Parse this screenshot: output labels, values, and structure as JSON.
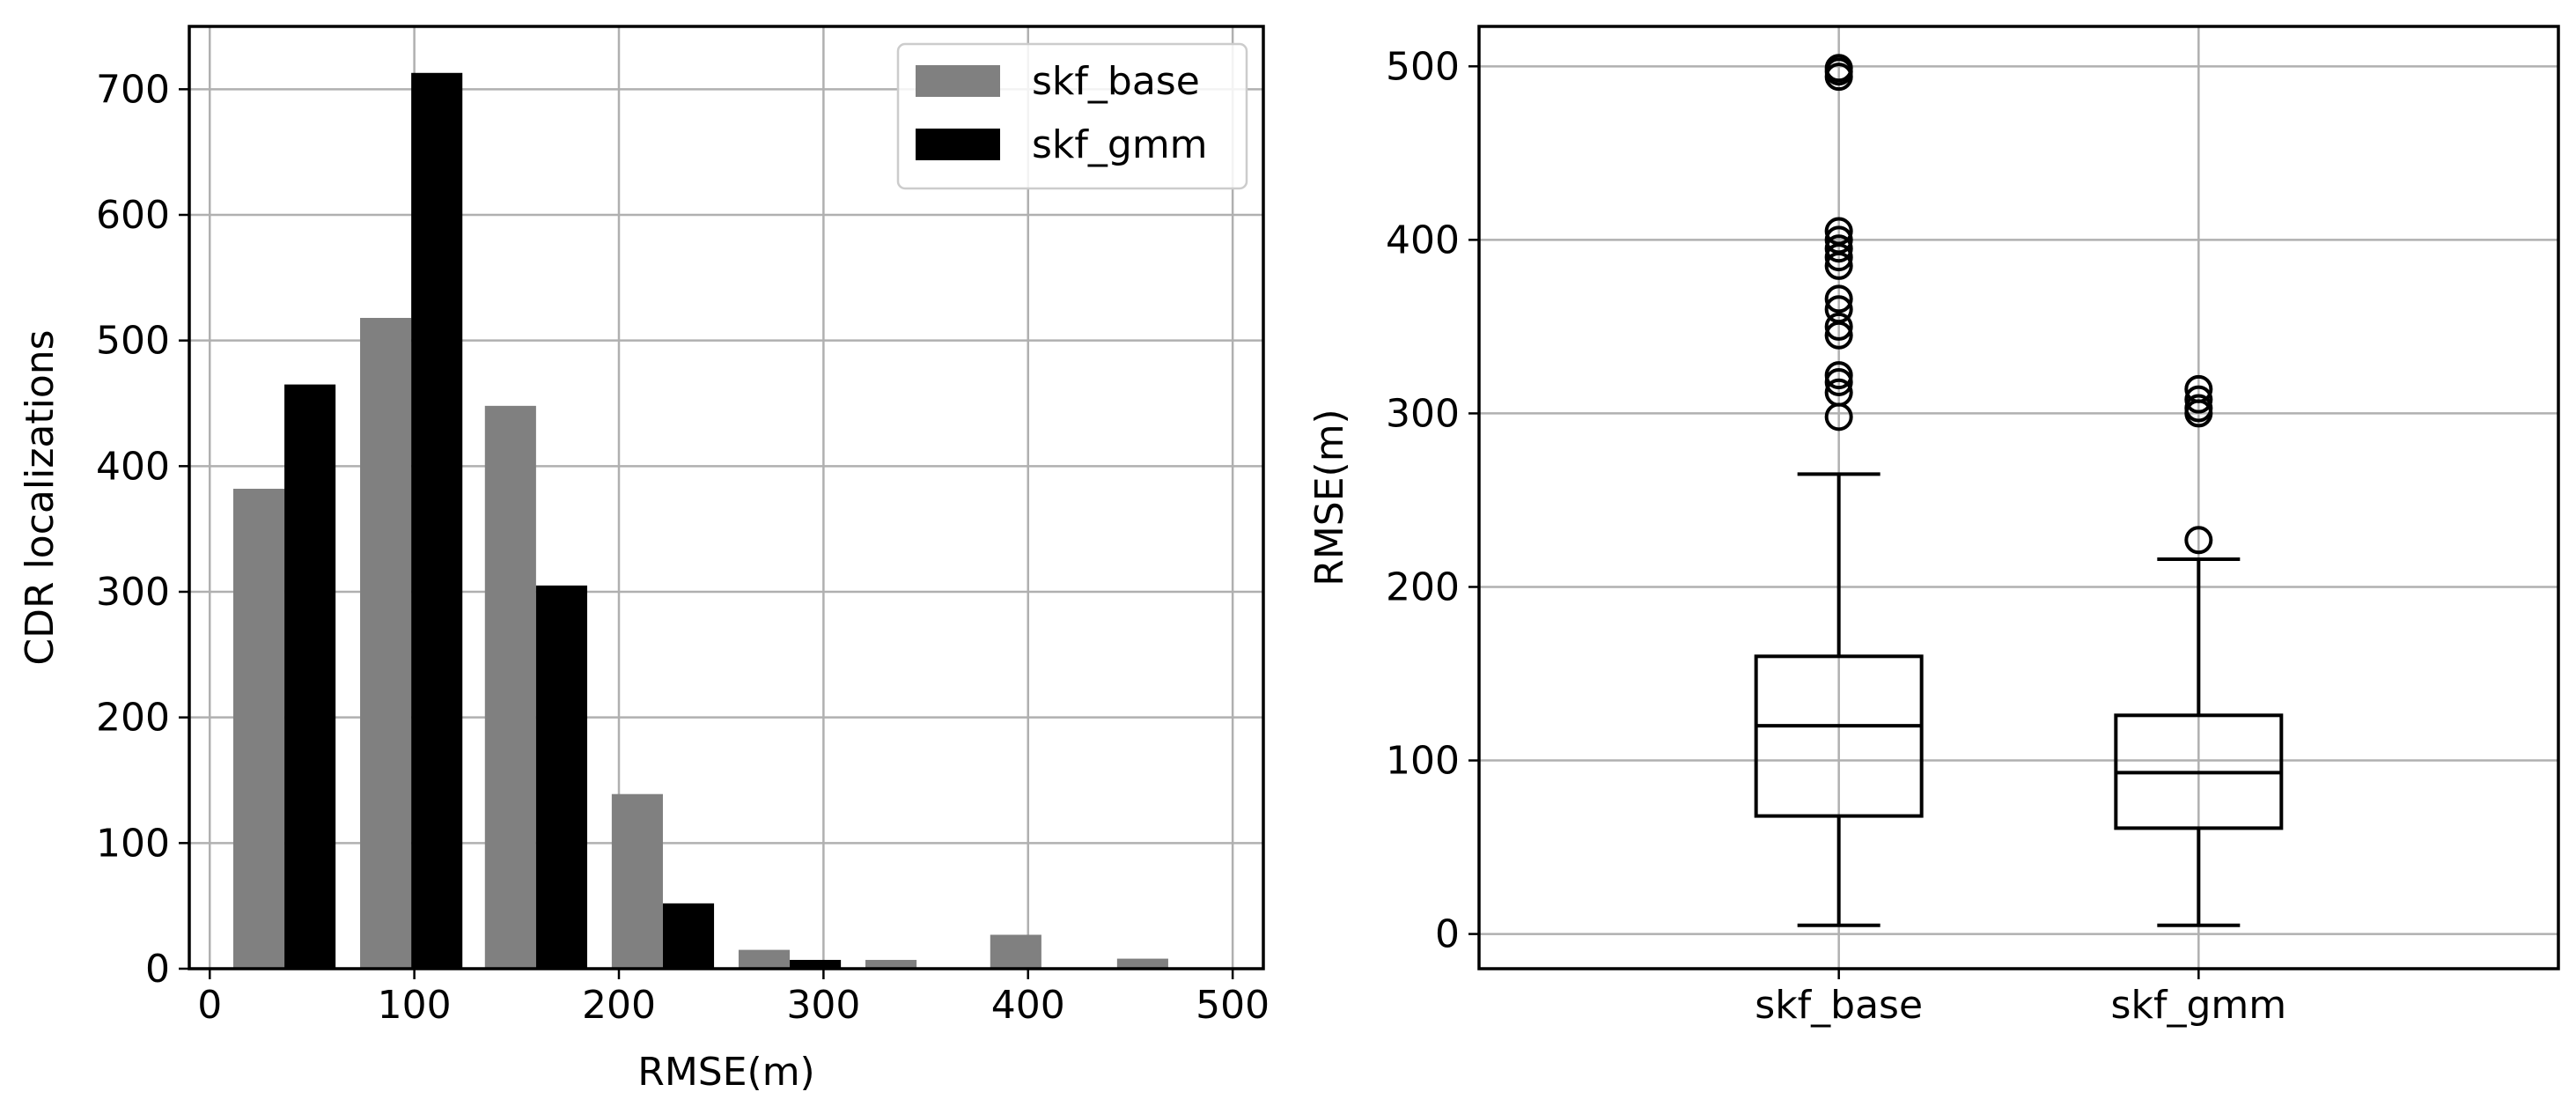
{
  "chart_data": [
    {
      "type": "bar",
      "title": "",
      "xlabel": "RMSE(m)",
      "ylabel": "CDR localizations",
      "xlim": [
        -10,
        515
      ],
      "ylim": [
        0,
        750
      ],
      "xticks": [
        0,
        100,
        200,
        300,
        400,
        500
      ],
      "yticks": [
        0,
        100,
        200,
        300,
        400,
        500,
        600,
        700
      ],
      "grid": true,
      "legend_position": "top-right",
      "bin_width": 25,
      "series": [
        {
          "name": "skf_base",
          "color": "#808080",
          "x": [
            24,
            86,
            147,
            209,
            271,
            333,
            394,
            456
          ],
          "values": [
            382,
            518,
            448,
            139,
            15,
            7,
            27,
            8
          ]
        },
        {
          "name": "skf_gmm",
          "color": "#000000",
          "x": [
            49,
            111,
            172,
            234,
            296,
            357,
            419,
            481
          ],
          "values": [
            465,
            713,
            305,
            52,
            7,
            0,
            0,
            0
          ]
        }
      ]
    },
    {
      "type": "box",
      "title": "",
      "xlabel": "",
      "ylabel": "RMSE(m)",
      "ylim": [
        -20,
        523
      ],
      "yticks": [
        0,
        100,
        200,
        300,
        400,
        500
      ],
      "grid": true,
      "categories": [
        "skf_base",
        "skf_gmm"
      ],
      "boxes": [
        {
          "category": "skf_base",
          "whisker_low": 5,
          "q1": 68,
          "median": 120,
          "q3": 160,
          "whisker_high": 265,
          "outliers": [
            298,
            312,
            318,
            322,
            345,
            350,
            360,
            366,
            385,
            390,
            395,
            400,
            405,
            494,
            497,
            499
          ]
        },
        {
          "category": "skf_gmm",
          "whisker_low": 5,
          "q1": 61,
          "median": 93,
          "q3": 126,
          "whisker_high": 216,
          "outliers": [
            227,
            300,
            303,
            308,
            314
          ]
        }
      ]
    }
  ]
}
